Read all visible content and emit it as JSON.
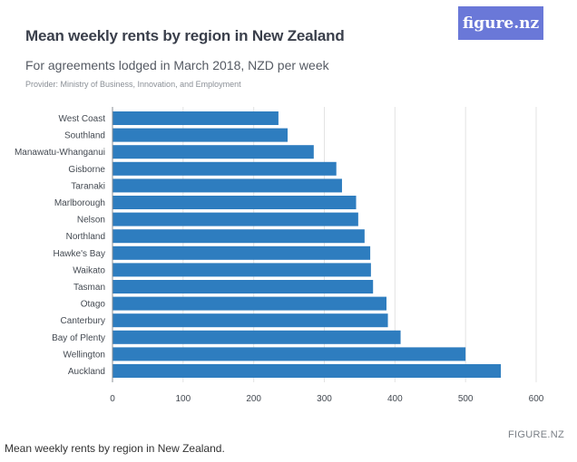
{
  "header": {
    "title": "Mean weekly rents by region in New Zealand",
    "subtitle": "For agreements lodged in March 2018, NZD per week",
    "provider": "Provider: Ministry of Business, Innovation, and Employment",
    "logo_text": "figure.nz"
  },
  "footer": {
    "watermark": "FIGURE.NZ",
    "caption": "Mean weekly rents by region in New Zealand."
  },
  "colors": {
    "bar": "#2e7dbf",
    "logo_bg": "#6a78d8"
  },
  "chart_data": {
    "type": "bar",
    "orientation": "horizontal",
    "title": "Mean weekly rents by region in New Zealand",
    "subtitle": "For agreements lodged in March 2018, NZD per week",
    "categories": [
      "West Coast",
      "Southland",
      "Manawatu-Whanganui",
      "Gisborne",
      "Taranaki",
      "Marlborough",
      "Nelson",
      "Northland",
      "Hawke's Bay",
      "Waikato",
      "Tasman",
      "Otago",
      "Canterbury",
      "Bay of Plenty",
      "Wellington",
      "Auckland"
    ],
    "values": [
      235,
      248,
      285,
      317,
      325,
      345,
      348,
      357,
      365,
      366,
      369,
      388,
      390,
      408,
      500,
      550
    ],
    "xlim": [
      0,
      600
    ],
    "xticks": [
      0,
      100,
      200,
      300,
      400,
      500,
      600
    ],
    "xlabel": "",
    "ylabel": "",
    "grid": true,
    "legend": "none"
  }
}
